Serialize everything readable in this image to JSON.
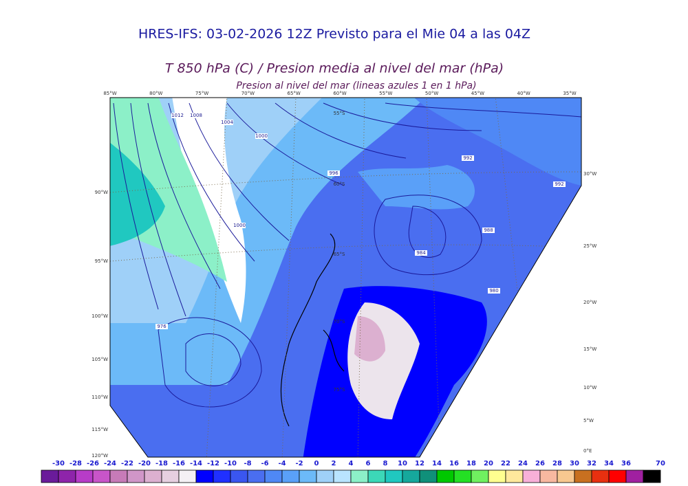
{
  "header": {
    "title": "HRES-IFS: 03-02-2026 12Z Previsto para el Mie 04 a las 04Z",
    "subtitle": "T 850 hPa (C) / Presion media al nivel del mar (hPa)",
    "note": "Presion al nivel del mar (lineas azules 1 en 1 hPa)"
  },
  "map": {
    "top_labels": [
      "85°W",
      "80°W",
      "75°W",
      "70°W",
      "65°W",
      "60°W",
      "55°W",
      "50°W",
      "45°W",
      "40°W",
      "35°W"
    ],
    "left_labels": [
      "90°W",
      "95°W",
      "100°W",
      "105°W",
      "110°W",
      "115°W",
      "120°W"
    ],
    "right_labels": [
      "30°W",
      "25°W",
      "20°W",
      "15°W",
      "10°W",
      "5°W",
      "0°E"
    ],
    "lat_labels": [
      "55°S",
      "60°S",
      "65°S",
      "70°S",
      "75°S"
    ],
    "isobar_labels": [
      "1012",
      "1008",
      "1004",
      "1000",
      "996",
      "992",
      "988",
      "984",
      "980",
      "976",
      "1000",
      "992"
    ]
  },
  "colorbar": {
    "labels": [
      "-30",
      "-28",
      "-26",
      "-24",
      "-22",
      "-20",
      "-18",
      "-16",
      "-14",
      "-12",
      "-10",
      "-8",
      "-6",
      "-4",
      "-2",
      "0",
      "2",
      "4",
      "6",
      "8",
      "10",
      "12",
      "14",
      "16",
      "18",
      "20",
      "22",
      "24",
      "26",
      "28",
      "30",
      "32",
      "34",
      "36",
      "70"
    ],
    "colors": [
      "#6a1b9a",
      "#8e24aa",
      "#b73cc8",
      "#c855c9",
      "#c77bb8",
      "#d096c8",
      "#dcb0d0",
      "#e6cfe0",
      "#f4f0f4",
      "#0000ff",
      "#2030ff",
      "#3a56f0",
      "#4a6ef0",
      "#4f88f5",
      "#5aa0f8",
      "#6cbaf8",
      "#9fd0f8",
      "#b9e4ff",
      "#8cf0c8",
      "#3cd8b8",
      "#20c8c0",
      "#16a89c",
      "#10907a",
      "#00c800",
      "#24e024",
      "#70f060",
      "#ffff90",
      "#ffe89c",
      "#f8b0d8",
      "#f8b8a0",
      "#f8c890",
      "#c87020",
      "#e83010",
      "#ff0000",
      "#a020a0",
      "#000000"
    ]
  }
}
